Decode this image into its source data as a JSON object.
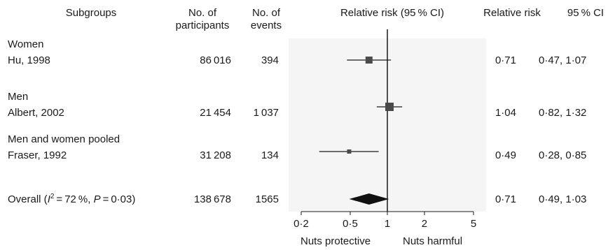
{
  "headers": {
    "subgroups": "Subgroups",
    "participants_line1": "No. of",
    "participants_line2": "participants",
    "events_line1": "No. of",
    "events_line2": "events",
    "rr_ci": "Relative risk (95 % CI)",
    "rr": "Relative risk",
    "ci": "95 % CI"
  },
  "groups": [
    {
      "label": "Women",
      "study": "Hu, 1998",
      "participants": "86 016",
      "events": "394",
      "rr_text": "0·71",
      "ci_text": "0·47, 1·07"
    },
    {
      "label": "Men",
      "study": "Albert, 2002",
      "participants": "21 454",
      "events": "1 037",
      "rr_text": "1·04",
      "ci_text": "0·82, 1·32"
    },
    {
      "label": "Men and women pooled",
      "study": "Fraser, 1992",
      "participants": "31 208",
      "events": "134",
      "rr_text": "0·49",
      "ci_text": "0·28, 0·85"
    }
  ],
  "overall": {
    "label_pre": "Overall (",
    "i_var": "I",
    "i_exp": "2",
    "label_mid": " = 72 %, ",
    "p_var": "P",
    "label_post": " = 0·03)",
    "participants": "138 678",
    "events": "1565",
    "rr_text": "0·71",
    "ci_text": "0·49, 1·03"
  },
  "axis": {
    "left_note": "Nuts protective",
    "right_note": "Nuts harmful"
  },
  "chart_data": {
    "type": "forest",
    "scale": "log",
    "xlim": [
      0.2,
      5
    ],
    "ticks": [
      {
        "value": 0.2,
        "label": "0·2"
      },
      {
        "value": 0.5,
        "label": "0·5"
      },
      {
        "value": 1,
        "label": "1"
      },
      {
        "value": 2,
        "label": "2"
      },
      {
        "value": 5,
        "label": "5"
      }
    ],
    "reference_line": 1,
    "studies": [
      {
        "study": "Hu, 1998",
        "rr": 0.71,
        "lower": 0.47,
        "upper": 1.07
      },
      {
        "study": "Albert, 2002",
        "rr": 1.04,
        "lower": 0.82,
        "upper": 1.32
      },
      {
        "study": "Fraser, 1992",
        "rr": 0.49,
        "lower": 0.28,
        "upper": 0.85
      }
    ],
    "overall": {
      "rr": 0.71,
      "lower": 0.49,
      "upper": 1.03
    },
    "colors": {
      "marker": "#4a4a4a",
      "line": "#1a1a1a",
      "panel": "#f5f5f5"
    }
  }
}
